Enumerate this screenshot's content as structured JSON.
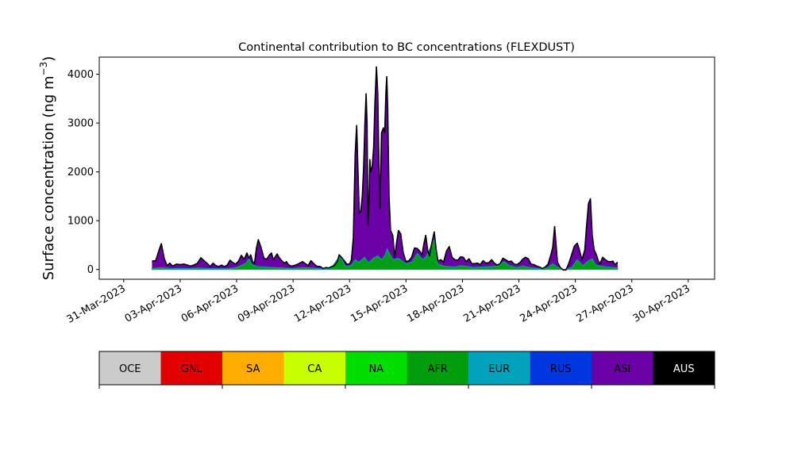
{
  "chart_data": {
    "type": "area",
    "title": "Continental contribution to BC concentrations (FLEXDUST)",
    "ylabel_main": "Surface concentration (ng m",
    "ylabel_exp": "−3",
    "ylabel_close": ")",
    "xlabel": "",
    "xlim_days": [
      -1.3,
      31.4
    ],
    "ylim": [
      -200,
      4350
    ],
    "y_ticks": [
      0,
      1000,
      2000,
      3000,
      4000
    ],
    "x_ticks": [
      {
        "day": 0,
        "label": "31-Mar-2023"
      },
      {
        "day": 3,
        "label": "03-Apr-2023"
      },
      {
        "day": 6,
        "label": "06-Apr-2023"
      },
      {
        "day": 9,
        "label": "09-Apr-2023"
      },
      {
        "day": 12,
        "label": "12-Apr-2023"
      },
      {
        "day": 15,
        "label": "15-Apr-2023"
      },
      {
        "day": 18,
        "label": "18-Apr-2023"
      },
      {
        "day": 21,
        "label": "21-Apr-2023"
      },
      {
        "day": 24,
        "label": "24-Apr-2023"
      },
      {
        "day": 27,
        "label": "27-Apr-2023"
      },
      {
        "day": 30,
        "label": "30-Apr-2023"
      }
    ],
    "total_series": [
      [
        1.5,
        170
      ],
      [
        1.7,
        180
      ],
      [
        1.9,
        420
      ],
      [
        2.0,
        530
      ],
      [
        2.15,
        230
      ],
      [
        2.3,
        80
      ],
      [
        2.45,
        130
      ],
      [
        2.6,
        70
      ],
      [
        2.8,
        110
      ],
      [
        3.0,
        100
      ],
      [
        3.2,
        110
      ],
      [
        3.4,
        90
      ],
      [
        3.55,
        70
      ],
      [
        3.7,
        90
      ],
      [
        3.9,
        120
      ],
      [
        4.1,
        240
      ],
      [
        4.3,
        170
      ],
      [
        4.45,
        120
      ],
      [
        4.6,
        60
      ],
      [
        4.75,
        130
      ],
      [
        4.9,
        80
      ],
      [
        5.05,
        60
      ],
      [
        5.2,
        90
      ],
      [
        5.35,
        60
      ],
      [
        5.5,
        90
      ],
      [
        5.65,
        190
      ],
      [
        5.8,
        140
      ],
      [
        5.95,
        110
      ],
      [
        6.1,
        170
      ],
      [
        6.25,
        290
      ],
      [
        6.4,
        210
      ],
      [
        6.55,
        340
      ],
      [
        6.65,
        230
      ],
      [
        6.75,
        300
      ],
      [
        6.85,
        160
      ],
      [
        6.95,
        120
      ],
      [
        7.05,
        430
      ],
      [
        7.15,
        610
      ],
      [
        7.3,
        450
      ],
      [
        7.45,
        230
      ],
      [
        7.6,
        210
      ],
      [
        7.75,
        300
      ],
      [
        7.85,
        340
      ],
      [
        7.95,
        200
      ],
      [
        8.05,
        260
      ],
      [
        8.15,
        320
      ],
      [
        8.25,
        250
      ],
      [
        8.35,
        200
      ],
      [
        8.45,
        160
      ],
      [
        8.55,
        130
      ],
      [
        8.65,
        160
      ],
      [
        8.75,
        100
      ],
      [
        8.9,
        70
      ],
      [
        9.05,
        80
      ],
      [
        9.2,
        100
      ],
      [
        9.35,
        130
      ],
      [
        9.5,
        160
      ],
      [
        9.65,
        120
      ],
      [
        9.8,
        80
      ],
      [
        9.95,
        180
      ],
      [
        10.1,
        120
      ],
      [
        10.25,
        70
      ],
      [
        10.45,
        60
      ],
      [
        10.6,
        20
      ],
      [
        10.75,
        40
      ],
      [
        10.9,
        30
      ],
      [
        11.05,
        60
      ],
      [
        11.2,
        80
      ],
      [
        11.35,
        160
      ],
      [
        11.45,
        300
      ],
      [
        11.55,
        260
      ],
      [
        11.7,
        190
      ],
      [
        11.85,
        110
      ],
      [
        12.0,
        110
      ],
      [
        12.1,
        200
      ],
      [
        12.2,
        650
      ],
      [
        12.3,
        2350
      ],
      [
        12.38,
        2950
      ],
      [
        12.45,
        2000
      ],
      [
        12.52,
        1150
      ],
      [
        12.6,
        1200
      ],
      [
        12.68,
        1500
      ],
      [
        12.75,
        2100
      ],
      [
        12.82,
        3000
      ],
      [
        12.88,
        3600
      ],
      [
        12.93,
        3000
      ],
      [
        12.98,
        900
      ],
      [
        13.03,
        1300
      ],
      [
        13.08,
        2250
      ],
      [
        13.13,
        2000
      ],
      [
        13.2,
        2100
      ],
      [
        13.28,
        2500
      ],
      [
        13.35,
        3400
      ],
      [
        13.43,
        4150
      ],
      [
        13.5,
        3600
      ],
      [
        13.55,
        2500
      ],
      [
        13.62,
        1250
      ],
      [
        13.7,
        2800
      ],
      [
        13.8,
        2900
      ],
      [
        13.87,
        2800
      ],
      [
        13.93,
        3600
      ],
      [
        13.98,
        3950
      ],
      [
        14.03,
        3300
      ],
      [
        14.1,
        1500
      ],
      [
        14.18,
        800
      ],
      [
        14.3,
        700
      ],
      [
        14.4,
        250
      ],
      [
        14.5,
        550
      ],
      [
        14.6,
        800
      ],
      [
        14.72,
        730
      ],
      [
        14.85,
        350
      ],
      [
        15.0,
        160
      ],
      [
        15.15,
        180
      ],
      [
        15.3,
        250
      ],
      [
        15.45,
        440
      ],
      [
        15.6,
        430
      ],
      [
        15.72,
        380
      ],
      [
        15.85,
        300
      ],
      [
        15.95,
        520
      ],
      [
        16.05,
        700
      ],
      [
        16.15,
        400
      ],
      [
        16.25,
        280
      ],
      [
        16.35,
        500
      ],
      [
        16.5,
        770
      ],
      [
        16.6,
        430
      ],
      [
        16.7,
        170
      ],
      [
        16.85,
        200
      ],
      [
        17.0,
        150
      ],
      [
        17.15,
        380
      ],
      [
        17.3,
        470
      ],
      [
        17.45,
        250
      ],
      [
        17.6,
        200
      ],
      [
        17.75,
        190
      ],
      [
        17.9,
        260
      ],
      [
        18.05,
        250
      ],
      [
        18.2,
        160
      ],
      [
        18.35,
        220
      ],
      [
        18.5,
        120
      ],
      [
        18.65,
        120
      ],
      [
        18.8,
        130
      ],
      [
        18.95,
        100
      ],
      [
        19.1,
        180
      ],
      [
        19.25,
        130
      ],
      [
        19.4,
        140
      ],
      [
        19.55,
        200
      ],
      [
        19.7,
        130
      ],
      [
        19.85,
        90
      ],
      [
        20.0,
        120
      ],
      [
        20.15,
        230
      ],
      [
        20.3,
        200
      ],
      [
        20.45,
        160
      ],
      [
        20.6,
        170
      ],
      [
        20.75,
        110
      ],
      [
        20.9,
        100
      ],
      [
        21.05,
        140
      ],
      [
        21.2,
        210
      ],
      [
        21.35,
        250
      ],
      [
        21.5,
        220
      ],
      [
        21.65,
        110
      ],
      [
        21.8,
        100
      ],
      [
        21.95,
        70
      ],
      [
        22.1,
        50
      ],
      [
        22.25,
        20
      ],
      [
        22.4,
        50
      ],
      [
        22.55,
        110
      ],
      [
        22.7,
        300
      ],
      [
        22.8,
        460
      ],
      [
        22.9,
        880
      ],
      [
        22.98,
        500
      ],
      [
        23.05,
        150
      ],
      [
        23.2,
        40
      ],
      [
        23.35,
        -10
      ],
      [
        23.5,
        -10
      ],
      [
        23.65,
        120
      ],
      [
        23.8,
        300
      ],
      [
        23.95,
        480
      ],
      [
        24.1,
        540
      ],
      [
        24.2,
        420
      ],
      [
        24.35,
        200
      ],
      [
        24.5,
        400
      ],
      [
        24.6,
        900
      ],
      [
        24.7,
        1350
      ],
      [
        24.8,
        1450
      ],
      [
        24.9,
        700
      ],
      [
        25.0,
        400
      ],
      [
        25.1,
        320
      ],
      [
        25.2,
        200
      ],
      [
        25.3,
        110
      ],
      [
        25.45,
        250
      ],
      [
        25.6,
        200
      ],
      [
        25.75,
        160
      ],
      [
        25.9,
        160
      ],
      [
        26.0,
        170
      ],
      [
        26.1,
        100
      ],
      [
        26.25,
        150
      ]
    ],
    "component_series": [
      [
        1.5,
        20
      ],
      [
        2.0,
        40
      ],
      [
        2.5,
        20
      ],
      [
        3.0,
        25
      ],
      [
        3.5,
        20
      ],
      [
        4.0,
        30
      ],
      [
        4.5,
        20
      ],
      [
        5.0,
        15
      ],
      [
        5.5,
        20
      ],
      [
        6.0,
        40
      ],
      [
        6.5,
        130
      ],
      [
        6.65,
        230
      ],
      [
        6.8,
        100
      ],
      [
        7.1,
        60
      ],
      [
        7.5,
        50
      ],
      [
        8.0,
        40
      ],
      [
        8.5,
        30
      ],
      [
        9.0,
        20
      ],
      [
        9.5,
        40
      ],
      [
        10.0,
        30
      ],
      [
        10.5,
        15
      ],
      [
        11.0,
        20
      ],
      [
        11.45,
        260
      ],
      [
        11.6,
        200
      ],
      [
        11.8,
        60
      ],
      [
        12.1,
        90
      ],
      [
        12.3,
        200
      ],
      [
        12.5,
        150
      ],
      [
        12.8,
        250
      ],
      [
        13.0,
        140
      ],
      [
        13.3,
        240
      ],
      [
        13.5,
        280
      ],
      [
        13.7,
        200
      ],
      [
        13.9,
        300
      ],
      [
        14.0,
        420
      ],
      [
        14.3,
        200
      ],
      [
        14.6,
        230
      ],
      [
        15.0,
        120
      ],
      [
        15.3,
        150
      ],
      [
        15.6,
        330
      ],
      [
        15.9,
        200
      ],
      [
        16.1,
        280
      ],
      [
        16.5,
        620
      ],
      [
        16.7,
        110
      ],
      [
        17.0,
        70
      ],
      [
        17.3,
        60
      ],
      [
        17.6,
        50
      ],
      [
        17.9,
        80
      ],
      [
        18.3,
        60
      ],
      [
        18.6,
        40
      ],
      [
        19.0,
        50
      ],
      [
        19.5,
        60
      ],
      [
        19.9,
        70
      ],
      [
        20.2,
        160
      ],
      [
        20.5,
        80
      ],
      [
        20.9,
        40
      ],
      [
        21.2,
        70
      ],
      [
        21.6,
        40
      ],
      [
        22.0,
        20
      ],
      [
        22.5,
        30
      ],
      [
        22.8,
        120
      ],
      [
        23.0,
        60
      ],
      [
        23.4,
        0
      ],
      [
        23.8,
        40
      ],
      [
        24.1,
        200
      ],
      [
        24.4,
        80
      ],
      [
        24.7,
        180
      ],
      [
        24.9,
        220
      ],
      [
        25.1,
        90
      ],
      [
        25.5,
        60
      ],
      [
        26.0,
        40
      ],
      [
        26.25,
        30
      ]
    ],
    "series_colors": {
      "asia_fill": "#6a00a5",
      "component_fill": "#009e18",
      "component_edge": "#00a0b8",
      "total_line": "#000000"
    },
    "colorbar": {
      "categories": [
        {
          "label": "OCE",
          "color": "#cbcbcb",
          "text_color": "#000000"
        },
        {
          "label": "GNL",
          "color": "#e30000",
          "text_color": "#000000"
        },
        {
          "label": "SA",
          "color": "#ffac00",
          "text_color": "#000000"
        },
        {
          "label": "CA",
          "color": "#c8ff00",
          "text_color": "#000000"
        },
        {
          "label": "NA",
          "color": "#00de00",
          "text_color": "#000000"
        },
        {
          "label": "AFR",
          "color": "#009e0d",
          "text_color": "#000000"
        },
        {
          "label": "EUR",
          "color": "#00a3bb",
          "text_color": "#000000"
        },
        {
          "label": "RUS",
          "color": "#0036e0",
          "text_color": "#000000"
        },
        {
          "label": "ASI",
          "color": "#6a00a5",
          "text_color": "#000000"
        },
        {
          "label": "AUS",
          "color": "#000000",
          "text_color": "#ffffff"
        }
      ]
    }
  }
}
